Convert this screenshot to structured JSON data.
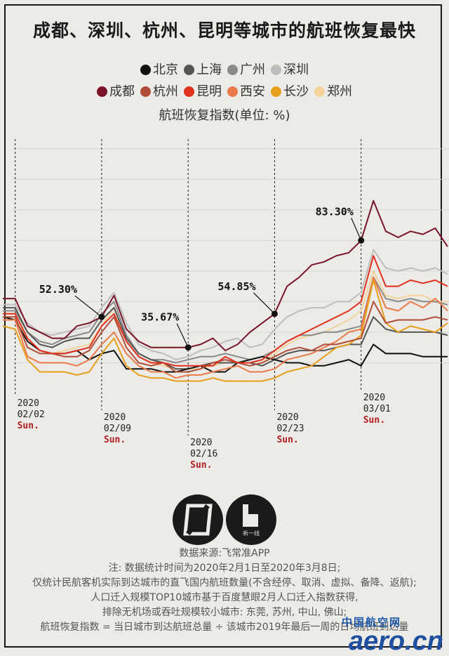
{
  "title": "成都、深圳、杭州、昆明等城市的航班恢复最快",
  "legend": {
    "row1": [
      {
        "label": "北京",
        "color": "#111111"
      },
      {
        "label": "上海",
        "color": "#555555"
      },
      {
        "label": "广州",
        "color": "#8a8a8a"
      },
      {
        "label": "深圳",
        "color": "#bdbdbd"
      }
    ],
    "row2": [
      {
        "label": "成都",
        "color": "#7a1428"
      },
      {
        "label": "杭州",
        "color": "#b14e3a"
      },
      {
        "label": "昆明",
        "color": "#e0301e"
      },
      {
        "label": "西安",
        "color": "#ea7a4a"
      },
      {
        "label": "长沙",
        "color": "#e6a01c"
      },
      {
        "label": "郑州",
        "color": "#f2d39a"
      }
    ]
  },
  "subtitle": "航班恢复指数(单位: %)",
  "chart_data": {
    "type": "line",
    "title": "成都、深圳、杭州、昆明等城市的航班恢复最快",
    "ylabel": "航班恢复指数(单位: %)",
    "x_start": "2020-02-01",
    "x_end": "2020-03-08",
    "ylim": [
      20,
      105
    ],
    "series": [
      {
        "name": "北京",
        "values": [
          45,
          44,
          37,
          34,
          33,
          33,
          34,
          31,
          33,
          34,
          28,
          28,
          28,
          27,
          27,
          28,
          29,
          27,
          27,
          30,
          31,
          32,
          31,
          30,
          30,
          29,
          29,
          30,
          31,
          29,
          36,
          33,
          33,
          33,
          32,
          32,
          32
        ]
      },
      {
        "name": "上海",
        "values": [
          48,
          48,
          40,
          36,
          35,
          37,
          38,
          38,
          44,
          48,
          38,
          33,
          31,
          30,
          28,
          28,
          29,
          30,
          30,
          30,
          30,
          29,
          31,
          33,
          34,
          34,
          34,
          35,
          36,
          36,
          45,
          41,
          40,
          40,
          40,
          40,
          39
        ]
      },
      {
        "name": "广州",
        "values": [
          47,
          47,
          40,
          37,
          36,
          38,
          39,
          40,
          46,
          50,
          39,
          33,
          31,
          31,
          30,
          31,
          32,
          32,
          33,
          32,
          31,
          32,
          34,
          37,
          39,
          39,
          40,
          40,
          41,
          42,
          58,
          51,
          50,
          51,
          50,
          50,
          49
        ]
      },
      {
        "name": "深圳",
        "values": [
          49,
          49,
          43,
          40,
          39,
          40,
          41,
          42,
          48,
          53,
          43,
          36,
          34,
          33,
          31,
          32,
          34,
          35,
          37,
          38,
          35,
          36,
          41,
          45,
          47,
          48,
          48,
          50,
          50,
          53,
          67,
          61,
          60,
          61,
          60,
          61,
          59
        ]
      },
      {
        "name": "成都",
        "values": [
          51,
          51,
          42,
          40,
          38,
          38,
          42,
          43,
          45,
          52,
          41,
          37,
          35,
          35,
          35,
          35,
          36,
          38,
          34,
          36,
          40,
          43,
          46,
          55,
          58,
          62,
          63,
          65,
          66,
          70,
          83,
          73,
          71,
          73,
          72,
          74,
          68
        ]
      },
      {
        "name": "杭州",
        "values": [
          45,
          45,
          35,
          33,
          33,
          32,
          32,
          34,
          40,
          45,
          35,
          30,
          29,
          30,
          27,
          27,
          28,
          30,
          31,
          30,
          29,
          30,
          32,
          34,
          35,
          34,
          36,
          36,
          37,
          38,
          50,
          43,
          44,
          44,
          44,
          45,
          44
        ]
      },
      {
        "name": "昆明",
        "values": [
          46,
          46,
          38,
          34,
          33,
          33,
          34,
          35,
          42,
          46,
          37,
          32,
          30,
          30,
          29,
          29,
          29,
          29,
          32,
          30,
          30,
          31,
          34,
          37,
          39,
          41,
          43,
          45,
          47,
          50,
          65,
          55,
          55,
          57,
          56,
          57,
          55
        ]
      },
      {
        "name": "西安",
        "values": [
          44,
          44,
          32,
          30,
          30,
          30,
          29,
          31,
          36,
          40,
          33,
          29,
          27,
          27,
          25,
          26,
          26,
          27,
          28,
          29,
          27,
          27,
          28,
          31,
          32,
          33,
          35,
          37,
          40,
          41,
          58,
          48,
          47,
          50,
          48,
          51,
          47
        ]
      },
      {
        "name": "长沙",
        "values": [
          42,
          41,
          31,
          27,
          27,
          27,
          26,
          27,
          33,
          38,
          29,
          26,
          25,
          25,
          24,
          24,
          24,
          25,
          24,
          24,
          24,
          24,
          25,
          27,
          28,
          29,
          32,
          35,
          36,
          39,
          57,
          43,
          40,
          42,
          41,
          40,
          43
        ]
      },
      {
        "name": "郑州",
        "values": [
          46,
          46,
          37,
          34,
          33,
          34,
          35,
          36,
          42,
          48,
          37,
          32,
          30,
          29,
          28,
          28,
          28,
          29,
          30,
          30,
          29,
          30,
          33,
          36,
          38,
          39,
          40,
          42,
          44,
          47,
          60,
          52,
          51,
          52,
          52,
          50,
          50
        ]
      }
    ],
    "annotations": [
      {
        "text": "52.30%",
        "x_index": 8
      },
      {
        "text": "35.67%",
        "x_index": 15
      },
      {
        "text": "54.85%",
        "x_index": 22
      },
      {
        "text": "83.30%",
        "x_index": 29
      }
    ],
    "markers": [
      {
        "index": 1,
        "year": "2020",
        "date": "02/02",
        "day": "Sun."
      },
      {
        "index": 8,
        "year": "2020",
        "date": "02/09",
        "day": "Sun."
      },
      {
        "index": 15,
        "year": "2020",
        "date": "02/16",
        "day": "Sun."
      },
      {
        "index": 22,
        "year": "2020",
        "date": "02/23",
        "day": "Sun."
      },
      {
        "index": 29,
        "year": "2020",
        "date": "03/01",
        "day": "Sun."
      }
    ]
  },
  "logo2_caption": "新一线",
  "notes": [
    "数据来源:飞常准APP",
    "注: 数据统计时间为2020年2月1日至2020年3月8日;",
    "仅统计民航客机实际到达城市的直飞国内航班数量(不含经停、取消、虚拟、备降、返航);",
    "人口迁入规模TOP10城市基于百度慧眼2月人口迁入指数获得,",
    "排除无机场或吞吐规模较小城市: 东莞, 苏州, 中山, 佛山;",
    "航班恢复指数 = 当日城市到达航班总量 ÷ 该城市2019年最后一周的日均航班到达量"
  ],
  "watermark": {
    "cn": "中国航空网",
    "en": "aero.cn"
  }
}
